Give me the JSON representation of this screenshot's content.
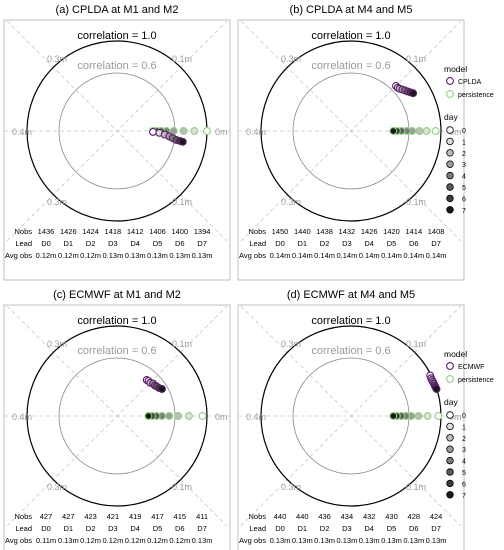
{
  "colors": {
    "model": "#5b1a6b",
    "model_fill": "#7a3f8a",
    "persistence": "#8fd07e",
    "outer_ring": "#000000",
    "inner_ring": "#888888",
    "grid": "#c8c8c8",
    "label": "#9a9a9a"
  },
  "table_row_labels": {
    "nobs": "Nobs",
    "lead": "Lead",
    "avg": "Avg obs"
  },
  "legends": [
    {
      "model_title": "model",
      "model_items": [
        "CPLDA",
        "persistence"
      ],
      "day_title": "day",
      "day_items": [
        "0",
        "1",
        "2",
        "3",
        "4",
        "5",
        "6",
        "7"
      ]
    },
    {
      "model_title": "model",
      "model_items": [
        "ECMWF",
        "persistence"
      ],
      "day_title": "day",
      "day_items": [
        "0",
        "1",
        "2",
        "3",
        "4",
        "5",
        "6",
        "7"
      ]
    }
  ],
  "chart_data": [
    {
      "type": "scatter",
      "title": "(a) CPLDA at M1 and M2",
      "corr_outer": "correlation = 1.0",
      "corr_inner": "correlation = 0.6",
      "rmse_labels": {
        "left": "0.4m",
        "right": "0m",
        "ul": "0.3m",
        "ur": "0.1m",
        "ll": "0.3m",
        "lr": "-0.1m"
      },
      "nobs": [
        "1436",
        "1426",
        "1424",
        "1418",
        "1412",
        "1406",
        "1400",
        "1394"
      ],
      "lead": [
        "D0",
        "D1",
        "D2",
        "D3",
        "D4",
        "D5",
        "D6",
        "D7"
      ],
      "avg_obs": [
        "0.12m",
        "0.12m",
        "0.12m",
        "0.13m",
        "0.13m",
        "0.13m",
        "0.13m",
        "0.13m"
      ],
      "series": [
        {
          "name": "CPLDA",
          "points": [
            [
              0.4,
              -0.01
            ],
            [
              0.47,
              -0.02
            ],
            [
              0.53,
              -0.04
            ],
            [
              0.58,
              -0.06
            ],
            [
              0.62,
              -0.08
            ],
            [
              0.66,
              -0.1
            ],
            [
              0.7,
              -0.11
            ],
            [
              0.73,
              -0.12
            ]
          ]
        },
        {
          "name": "persistence",
          "points": [
            [
              1.0,
              0.0
            ],
            [
              0.86,
              0.0
            ],
            [
              0.74,
              0.0
            ],
            [
              0.63,
              0.0
            ],
            [
              0.55,
              0.0
            ],
            [
              0.49,
              0.0
            ],
            [
              0.44,
              0.0
            ],
            [
              0.4,
              0.0
            ]
          ]
        }
      ]
    },
    {
      "type": "scatter",
      "title": "(b) CPLDA at M4 and M5",
      "corr_outer": "correlation = 1.0",
      "corr_inner": "correlation = 0.6",
      "rmse_labels": {
        "left": "0.4m",
        "right": "0m",
        "ul": "0.3m",
        "ur": "0.1m",
        "ll": "0.3m",
        "lr": "-0.1m"
      },
      "nobs": [
        "1450",
        "1440",
        "1438",
        "1432",
        "1426",
        "1420",
        "1414",
        "1408"
      ],
      "lead": [
        "D0",
        "D1",
        "D2",
        "D3",
        "D4",
        "D5",
        "D6",
        "D7"
      ],
      "avg_obs": [
        "0.14m",
        "0.14m",
        "0.14m",
        "0.14m",
        "0.14m",
        "0.14m",
        "0.14m",
        "0.14m"
      ],
      "series": [
        {
          "name": "CPLDA",
          "points": [
            [
              0.5,
              0.5
            ],
            [
              0.52,
              0.48
            ],
            [
              0.54,
              0.47
            ],
            [
              0.57,
              0.46
            ],
            [
              0.6,
              0.45
            ],
            [
              0.63,
              0.44
            ],
            [
              0.66,
              0.43
            ],
            [
              0.69,
              0.42
            ]
          ]
        },
        {
          "name": "persistence",
          "points": [
            [
              0.94,
              0.0
            ],
            [
              0.84,
              0.0
            ],
            [
              0.76,
              0.0
            ],
            [
              0.68,
              0.0
            ],
            [
              0.62,
              0.0
            ],
            [
              0.56,
              0.0
            ],
            [
              0.51,
              0.0
            ],
            [
              0.47,
              0.0
            ]
          ]
        }
      ]
    },
    {
      "type": "scatter",
      "title": "(c) ECMWF at M1 and M2",
      "corr_outer": "correlation = 1.0",
      "corr_inner": "correlation = 0.6",
      "rmse_labels": {
        "left": "0.4m",
        "right": "0m",
        "ul": "0.3m",
        "ur": "0.1m",
        "ll": "0.3m",
        "lr": "-0.1m"
      },
      "nobs": [
        "427",
        "427",
        "423",
        "421",
        "419",
        "417",
        "415",
        "411"
      ],
      "lead": [
        "D0",
        "D1",
        "D2",
        "D3",
        "D4",
        "D5",
        "D6",
        "D7"
      ],
      "avg_obs": [
        "0.11m",
        "0.13m",
        "0.12m",
        "0.12m",
        "0.12m",
        "0.12m",
        "0.12m",
        "0.13m"
      ],
      "series": [
        {
          "name": "ECMWF",
          "points": [
            [
              0.33,
              0.4
            ],
            [
              0.35,
              0.39
            ],
            [
              0.37,
              0.37
            ],
            [
              0.4,
              0.36
            ],
            [
              0.42,
              0.34
            ],
            [
              0.44,
              0.33
            ],
            [
              0.47,
              0.31
            ],
            [
              0.5,
              0.3
            ]
          ]
        },
        {
          "name": "persistence",
          "points": [
            [
              0.95,
              0.0
            ],
            [
              0.8,
              0.0
            ],
            [
              0.68,
              0.0
            ],
            [
              0.58,
              0.0
            ],
            [
              0.5,
              0.0
            ],
            [
              0.44,
              0.0
            ],
            [
              0.39,
              0.0
            ],
            [
              0.35,
              0.0
            ]
          ]
        }
      ]
    },
    {
      "type": "scatter",
      "title": "(d) ECMWF at M4 and M5",
      "corr_outer": "correlation = 1.0",
      "corr_inner": "correlation = 0.6",
      "rmse_labels": {
        "left": "0.4m",
        "right": "0m",
        "ul": "0.3m",
        "ur": "0.1m",
        "ll": "0.3m",
        "lr": "-0.1m"
      },
      "nobs": [
        "440",
        "440",
        "436",
        "434",
        "432",
        "430",
        "428",
        "424"
      ],
      "lead": [
        "D0",
        "D1",
        "D2",
        "D3",
        "D4",
        "D5",
        "D6",
        "D7"
      ],
      "avg_obs": [
        "0.13m",
        "0.13m",
        "0.13m",
        "0.13m",
        "0.13m",
        "0.13m",
        "0.13m",
        "0.13m"
      ],
      "series": [
        {
          "name": "ECMWF",
          "points": [
            [
              0.88,
              0.45
            ],
            [
              0.89,
              0.42
            ],
            [
              0.9,
              0.4
            ],
            [
              0.91,
              0.38
            ],
            [
              0.92,
              0.36
            ],
            [
              0.93,
              0.34
            ],
            [
              0.94,
              0.32
            ],
            [
              0.95,
              0.3
            ]
          ]
        },
        {
          "name": "persistence",
          "points": [
            [
              0.97,
              0.0
            ],
            [
              0.85,
              0.0
            ],
            [
              0.75,
              0.0
            ],
            [
              0.67,
              0.0
            ],
            [
              0.61,
              0.0
            ],
            [
              0.56,
              0.0
            ],
            [
              0.51,
              0.0
            ],
            [
              0.47,
              0.0
            ]
          ]
        }
      ]
    }
  ]
}
